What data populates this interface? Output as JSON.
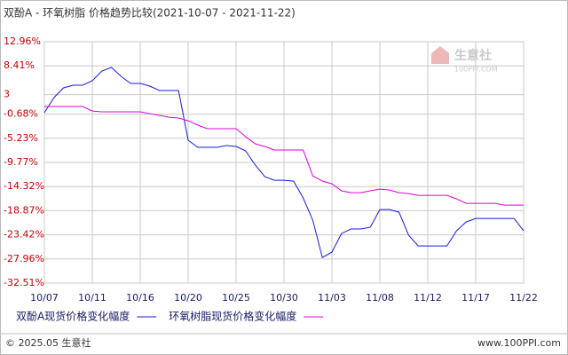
{
  "chart_data": {
    "type": "line",
    "title": "双酚A - 环氧树脂 价格趋势比较(2021-10-07 - 2021-11-22)",
    "categories": [
      "10/07",
      null,
      null,
      null,
      null,
      "10/11",
      null,
      null,
      null,
      null,
      "10/16",
      null,
      null,
      null,
      null,
      "10/20",
      null,
      null,
      null,
      null,
      "10/25",
      null,
      null,
      null,
      null,
      "10/30",
      null,
      null,
      null,
      null,
      "11/03",
      null,
      null,
      null,
      null,
      "11/08",
      null,
      null,
      null,
      null,
      "11/12",
      null,
      null,
      null,
      null,
      "11/17",
      null,
      null,
      null,
      null,
      "11/22"
    ],
    "series": [
      {
        "name": "双酚A现货价格变化幅度",
        "color": "#1a1adb",
        "values": [
          -0.42,
          2.43,
          4.27,
          4.77,
          4.77,
          5.6,
          7.44,
          8.11,
          6.44,
          5.1,
          5.1,
          4.6,
          3.76,
          3.76,
          3.76,
          -5.6,
          -6.94,
          -6.94,
          -6.94,
          -6.6,
          -6.77,
          -7.6,
          -10.28,
          -12.46,
          -13.13,
          -13.13,
          -13.3,
          -16.47,
          -20.65,
          -27.68,
          -26.67,
          -23.16,
          -22.32,
          -22.32,
          -21.99,
          -18.65,
          -18.65,
          -19.15,
          -23.49,
          -25.5,
          -25.5,
          -25.5,
          -25.5,
          -22.66,
          -20.99,
          -20.32,
          -20.32,
          -20.32,
          -20.32,
          -20.32,
          -22.66
        ]
      },
      {
        "name": "环氧树脂现货价格变化幅度",
        "color": "#dd00dd",
        "values": [
          0.75,
          0.75,
          0.75,
          0.75,
          0.75,
          -0.09,
          -0.25,
          -0.25,
          -0.25,
          -0.25,
          -0.25,
          -0.59,
          -0.92,
          -1.26,
          -1.42,
          -1.93,
          -2.76,
          -3.43,
          -3.43,
          -3.43,
          -3.43,
          -4.94,
          -6.27,
          -6.78,
          -7.44,
          -7.44,
          -7.44,
          -7.44,
          -12.29,
          -13.29,
          -13.8,
          -15.13,
          -15.47,
          -15.47,
          -15.13,
          -14.8,
          -14.97,
          -15.47,
          -15.64,
          -15.97,
          -15.97,
          -15.97,
          -15.97,
          -16.64,
          -17.48,
          -17.48,
          -17.48,
          -17.48,
          -17.81,
          -17.81,
          -17.81
        ]
      }
    ],
    "ylim": [
      -32.51,
      12.96
    ],
    "yticks": [
      {
        "value": 12.96,
        "label": "12.96%"
      },
      {
        "value": 8.41,
        "label": "8.41%"
      },
      3,
      {
        "value": -0.68,
        "label": "-0.68%"
      },
      {
        "value": -5.23,
        "label": "-5.23%"
      },
      {
        "value": -9.77,
        "label": "-9.77%"
      },
      {
        "value": -14.32,
        "label": "-14.32%"
      },
      {
        "value": -18.87,
        "label": "-18.87%"
      },
      {
        "value": -23.42,
        "label": "-23.42%"
      },
      {
        "value": -27.96,
        "label": "-27.96%"
      },
      {
        "value": -32.51,
        "label": "-32.51%"
      }
    ],
    "grid": true,
    "watermark": [
      "生意社",
      "100PPI.COM"
    ],
    "footer_left": "© 2025.05 生意社",
    "footer_right": "www.100PPI.com"
  }
}
